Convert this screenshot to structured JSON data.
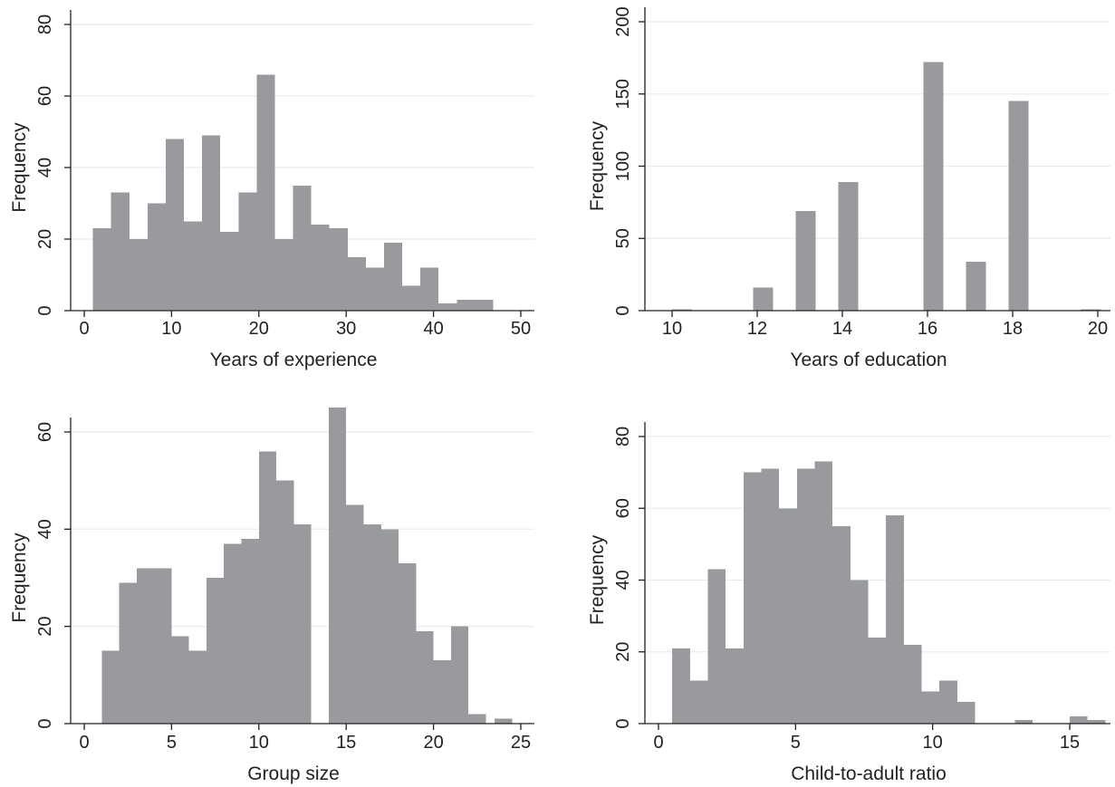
{
  "colors": {
    "bar": "#999a9e",
    "grid": "#e4eeee",
    "axis": "#222222"
  },
  "chart_data": [
    {
      "type": "bar",
      "title": "",
      "xlabel": "Years of experience",
      "ylabel": "Frequency",
      "xlim": [
        0,
        50
      ],
      "ylim": [
        0,
        80
      ],
      "xticks": [
        0,
        10,
        20,
        30,
        40,
        50
      ],
      "yticks": [
        0,
        20,
        40,
        60,
        80
      ],
      "grid": true,
      "bins": [
        {
          "x0": 1,
          "x1": 3.08,
          "value": 23
        },
        {
          "x0": 3.08,
          "x1": 5.17,
          "value": 33
        },
        {
          "x0": 5.17,
          "x1": 7.25,
          "value": 20
        },
        {
          "x0": 7.25,
          "x1": 9.33,
          "value": 30
        },
        {
          "x0": 9.33,
          "x1": 11.42,
          "value": 48
        },
        {
          "x0": 11.42,
          "x1": 13.5,
          "value": 25
        },
        {
          "x0": 13.5,
          "x1": 15.58,
          "value": 49
        },
        {
          "x0": 15.58,
          "x1": 17.67,
          "value": 22
        },
        {
          "x0": 17.67,
          "x1": 19.75,
          "value": 33
        },
        {
          "x0": 19.75,
          "x1": 21.83,
          "value": 66
        },
        {
          "x0": 21.83,
          "x1": 23.92,
          "value": 20
        },
        {
          "x0": 23.92,
          "x1": 26,
          "value": 35
        },
        {
          "x0": 26,
          "x1": 28.08,
          "value": 24
        },
        {
          "x0": 28.08,
          "x1": 30.17,
          "value": 23
        },
        {
          "x0": 30.17,
          "x1": 32.25,
          "value": 15
        },
        {
          "x0": 32.25,
          "x1": 34.33,
          "value": 12
        },
        {
          "x0": 34.33,
          "x1": 36.42,
          "value": 19
        },
        {
          "x0": 36.42,
          "x1": 38.5,
          "value": 7
        },
        {
          "x0": 38.5,
          "x1": 40.58,
          "value": 12
        },
        {
          "x0": 40.58,
          "x1": 42.67,
          "value": 2
        },
        {
          "x0": 42.67,
          "x1": 44.75,
          "value": 3
        },
        {
          "x0": 44.75,
          "x1": 46.83,
          "value": 3
        }
      ]
    },
    {
      "type": "bar",
      "title": "",
      "xlabel": "Years of education",
      "ylabel": "Frequency",
      "xlim": [
        9.5,
        20.2
      ],
      "ylim": [
        0,
        200
      ],
      "xticks": [
        10,
        12,
        14,
        16,
        18,
        20
      ],
      "yticks": [
        0,
        50,
        100,
        150,
        200
      ],
      "grid": true,
      "bins": [
        {
          "x0": 10,
          "x1": 10.47,
          "value": 1
        },
        {
          "x0": 11.9,
          "x1": 12.37,
          "value": 16
        },
        {
          "x0": 12.9,
          "x1": 13.37,
          "value": 69
        },
        {
          "x0": 13.9,
          "x1": 14.37,
          "value": 89
        },
        {
          "x0": 15.9,
          "x1": 16.37,
          "value": 172
        },
        {
          "x0": 16.9,
          "x1": 17.37,
          "value": 34
        },
        {
          "x0": 17.9,
          "x1": 18.37,
          "value": 145
        },
        {
          "x0": 19.6,
          "x1": 20.07,
          "value": 1
        }
      ]
    },
    {
      "type": "bar",
      "title": "",
      "xlabel": "Group size",
      "ylabel": "Frequency",
      "xlim": [
        0,
        25
      ],
      "ylim": [
        0,
        68
      ],
      "xticks": [
        0,
        5,
        10,
        15,
        20,
        25
      ],
      "yticks": [
        0,
        20,
        40,
        60
      ],
      "grid": true,
      "bins": [
        {
          "x0": 1,
          "x1": 2,
          "value": 15
        },
        {
          "x0": 2,
          "x1": 3,
          "value": 29
        },
        {
          "x0": 3,
          "x1": 4,
          "value": 32
        },
        {
          "x0": 4,
          "x1": 5,
          "value": 32
        },
        {
          "x0": 5,
          "x1": 6,
          "value": 18
        },
        {
          "x0": 6,
          "x1": 7,
          "value": 15
        },
        {
          "x0": 7,
          "x1": 8,
          "value": 30
        },
        {
          "x0": 8,
          "x1": 9,
          "value": 37
        },
        {
          "x0": 9,
          "x1": 10,
          "value": 38
        },
        {
          "x0": 10,
          "x1": 11,
          "value": 56
        },
        {
          "x0": 11,
          "x1": 12,
          "value": 50
        },
        {
          "x0": 12,
          "x1": 13,
          "value": 41
        },
        {
          "x0": 13,
          "x1": 14,
          "value": 0
        },
        {
          "x0": 14,
          "x1": 15,
          "value": 65
        },
        {
          "x0": 15,
          "x1": 16,
          "value": 45
        },
        {
          "x0": 16,
          "x1": 17,
          "value": 41
        },
        {
          "x0": 17,
          "x1": 18,
          "value": 40
        },
        {
          "x0": 18,
          "x1": 19,
          "value": 33
        },
        {
          "x0": 19,
          "x1": 20,
          "value": 19
        },
        {
          "x0": 20,
          "x1": 21,
          "value": 13
        },
        {
          "x0": 21,
          "x1": 22,
          "value": 20
        },
        {
          "x0": 22,
          "x1": 23,
          "value": 2
        },
        {
          "x0": 23.5,
          "x1": 24.5,
          "value": 1
        }
      ]
    },
    {
      "type": "bar",
      "title": "",
      "xlabel": "Child-to-adult ratio",
      "ylabel": "Frequency",
      "xlim": [
        0,
        16
      ],
      "ylim": [
        0,
        80
      ],
      "xticks": [
        0,
        5,
        10,
        15
      ],
      "yticks": [
        0,
        20,
        40,
        60,
        80
      ],
      "grid": true,
      "bins": [
        {
          "x0": 0.5,
          "x1": 1.15,
          "value": 21
        },
        {
          "x0": 1.15,
          "x1": 1.8,
          "value": 12
        },
        {
          "x0": 1.8,
          "x1": 2.45,
          "value": 43
        },
        {
          "x0": 2.45,
          "x1": 3.1,
          "value": 21
        },
        {
          "x0": 3.1,
          "x1": 3.75,
          "value": 70
        },
        {
          "x0": 3.75,
          "x1": 4.4,
          "value": 71
        },
        {
          "x0": 4.4,
          "x1": 5.05,
          "value": 60
        },
        {
          "x0": 5.05,
          "x1": 5.7,
          "value": 71
        },
        {
          "x0": 5.7,
          "x1": 6.35,
          "value": 73
        },
        {
          "x0": 6.35,
          "x1": 7,
          "value": 55
        },
        {
          "x0": 7,
          "x1": 7.65,
          "value": 40
        },
        {
          "x0": 7.65,
          "x1": 8.3,
          "value": 24
        },
        {
          "x0": 8.3,
          "x1": 8.95,
          "value": 58
        },
        {
          "x0": 8.95,
          "x1": 9.6,
          "value": 22
        },
        {
          "x0": 9.6,
          "x1": 10.25,
          "value": 9
        },
        {
          "x0": 10.25,
          "x1": 10.9,
          "value": 12
        },
        {
          "x0": 10.9,
          "x1": 11.55,
          "value": 6
        },
        {
          "x0": 13,
          "x1": 13.65,
          "value": 1
        },
        {
          "x0": 15,
          "x1": 15.65,
          "value": 2
        },
        {
          "x0": 15.65,
          "x1": 16.3,
          "value": 1
        }
      ]
    }
  ]
}
